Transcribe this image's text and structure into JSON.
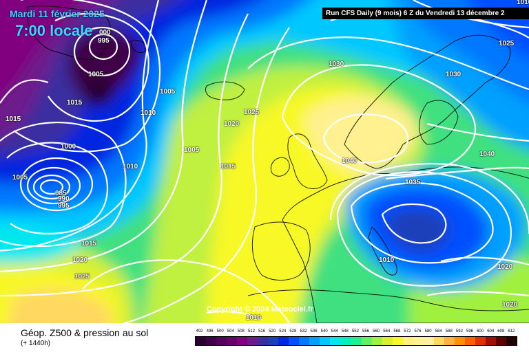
{
  "header": {
    "date": "Mardi 11 février 2025",
    "time": "7:00 locale",
    "run": "Run CFS Daily (9 mois) 6 Z du Vendredi 13 décembre 2"
  },
  "copyright": "Copyright © 2024 Meteociel.fr",
  "legend": {
    "title": "Géop. Z500 & pression au sol",
    "subtitle": "(+ 1440h)",
    "scale_values": [
      "492",
      "496",
      "500",
      "504",
      "508",
      "512",
      "516",
      "520",
      "524",
      "528",
      "532",
      "536",
      "540",
      "544",
      "548",
      "552",
      "556",
      "560",
      "564",
      "568",
      "572",
      "576",
      "580",
      "584",
      "588",
      "592",
      "596",
      "600",
      "604",
      "608",
      "612"
    ],
    "scale_colors": [
      "#2a0033",
      "#3f0046",
      "#55005a",
      "#6a006d",
      "#800080",
      "#6d1a8c",
      "#3b2ea0",
      "#1e3fb8",
      "#0028e0",
      "#0050ff",
      "#0078ff",
      "#00a0ff",
      "#00c8ff",
      "#00e8ee",
      "#00f0c0",
      "#20f090",
      "#60f060",
      "#a0f040",
      "#d8f030",
      "#f8f828",
      "#fff080",
      "#fff090",
      "#fff0a0",
      "#ffd860",
      "#ffb040",
      "#ff9000",
      "#ff6000",
      "#e03000",
      "#a01000",
      "#600000",
      "#200000"
    ]
  },
  "isobars": [
    {
      "value": "1030",
      "cls": "iso-1"
    },
    {
      "value": "1030",
      "cls": "iso-2"
    },
    {
      "value": "1025",
      "cls": "iso-3"
    },
    {
      "value": "1025",
      "cls": "iso-4"
    },
    {
      "value": "1020",
      "cls": "iso-5"
    },
    {
      "value": "1015",
      "cls": "iso-6"
    },
    {
      "value": "1005",
      "cls": "iso-7"
    },
    {
      "value": "1010",
      "cls": "iso-8"
    },
    {
      "value": "1010",
      "cls": "iso-9"
    },
    {
      "value": "1005",
      "cls": "iso-10"
    },
    {
      "value": "1005",
      "cls": "iso-11"
    },
    {
      "value": "1015",
      "cls": "iso-12"
    },
    {
      "value": "1015",
      "cls": "iso-13"
    },
    {
      "value": "1000",
      "cls": "iso-14"
    },
    {
      "value": "1005",
      "cls": "iso-15"
    },
    {
      "value": "995",
      "cls": "iso-16"
    },
    {
      "value": "000",
      "cls": "iso-17"
    },
    {
      "value": "985",
      "cls": "iso-18"
    },
    {
      "value": "990",
      "cls": "iso-19"
    },
    {
      "value": "995",
      "cls": "iso-20"
    },
    {
      "value": "1015",
      "cls": "iso-21"
    },
    {
      "value": "1020",
      "cls": "iso-22"
    },
    {
      "value": "1025",
      "cls": "iso-23"
    },
    {
      "value": "1040",
      "cls": "iso-24"
    },
    {
      "value": "1035",
      "cls": "iso-25"
    },
    {
      "value": "1040",
      "cls": "iso-26"
    },
    {
      "value": "1010",
      "cls": "iso-27"
    },
    {
      "value": "1020",
      "cls": "iso-28"
    },
    {
      "value": "1020",
      "cls": "iso-29"
    },
    {
      "value": "1010",
      "cls": "iso-30"
    },
    {
      "value": "1010",
      "cls": "iso-31"
    },
    {
      "value": "1015",
      "cls": "iso-32"
    }
  ]
}
